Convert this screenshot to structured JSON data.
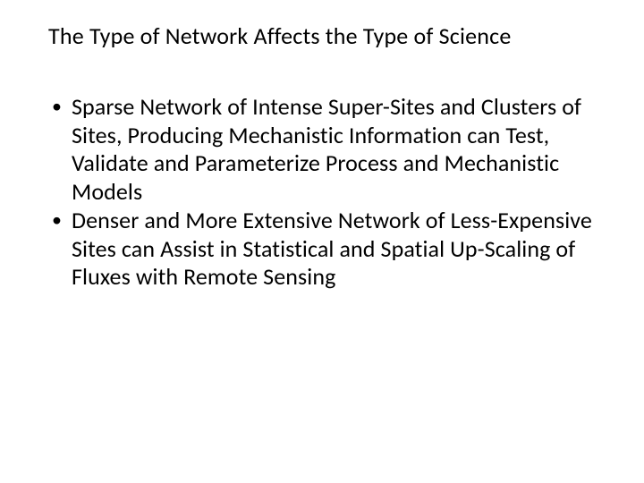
{
  "slide": {
    "title": "The Type of Network Affects the Type of Science",
    "bullets": [
      "Sparse Network of Intense Super-Sites and Clusters of Sites, Producing Mechanistic Information can Test, Validate and Parameterize Process and Mechanistic Models",
      "Denser and More Extensive Network of Less-Expensive Sites can Assist in Statistical and Spatial Up-Scaling of Fluxes with Remote Sensing"
    ]
  },
  "style": {
    "background_color": "#ffffff",
    "text_color": "#000000",
    "title_fontsize": 26,
    "body_fontsize": 26,
    "font_family": "Calibri"
  }
}
